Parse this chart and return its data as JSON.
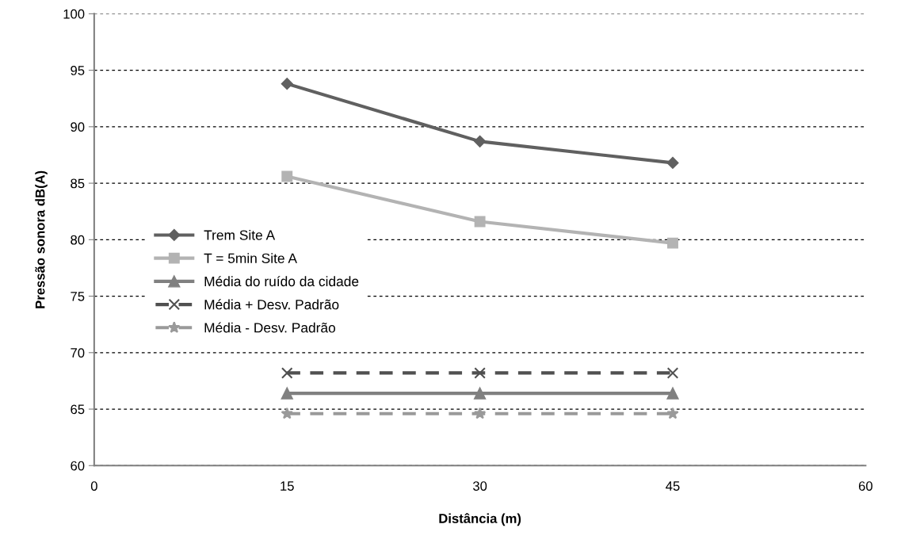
{
  "chart_data": {
    "type": "line",
    "xlabel": "Distância (m)",
    "ylabel": "Pressão sonora dB(A)",
    "x": [
      15,
      30,
      45
    ],
    "series": [
      {
        "name": "Trem Site A",
        "color": "#606060",
        "values": [
          93.8,
          88.7,
          86.8
        ],
        "marker": "diamond",
        "line_style": "solid"
      },
      {
        "name": "T = 5min Site A",
        "color": "#b3b3b3",
        "values": [
          85.6,
          81.6,
          79.7
        ],
        "marker": "square",
        "line_style": "solid"
      },
      {
        "name": "Média do ruído da cidade",
        "color": "#808080",
        "values": [
          66.4,
          66.4,
          66.4
        ],
        "marker": "triangle",
        "line_style": "solid"
      },
      {
        "name": "Média + Desv. Padrão",
        "color": "#505050",
        "values": [
          68.2,
          68.2,
          68.2
        ],
        "marker": "cross",
        "line_style": "dashed"
      },
      {
        "name": "Média - Desv. Padrão",
        "color": "#9a9a9a",
        "values": [
          64.6,
          64.6,
          64.6
        ],
        "marker": "star",
        "line_style": "dashed"
      }
    ],
    "xlim": [
      0,
      60
    ],
    "xticks": [
      0,
      15,
      30,
      45,
      60
    ],
    "ylim": [
      60,
      100
    ],
    "yticks": [
      60,
      65,
      70,
      75,
      80,
      85,
      90,
      95,
      100
    ],
    "grid": "y",
    "legend": "left"
  }
}
